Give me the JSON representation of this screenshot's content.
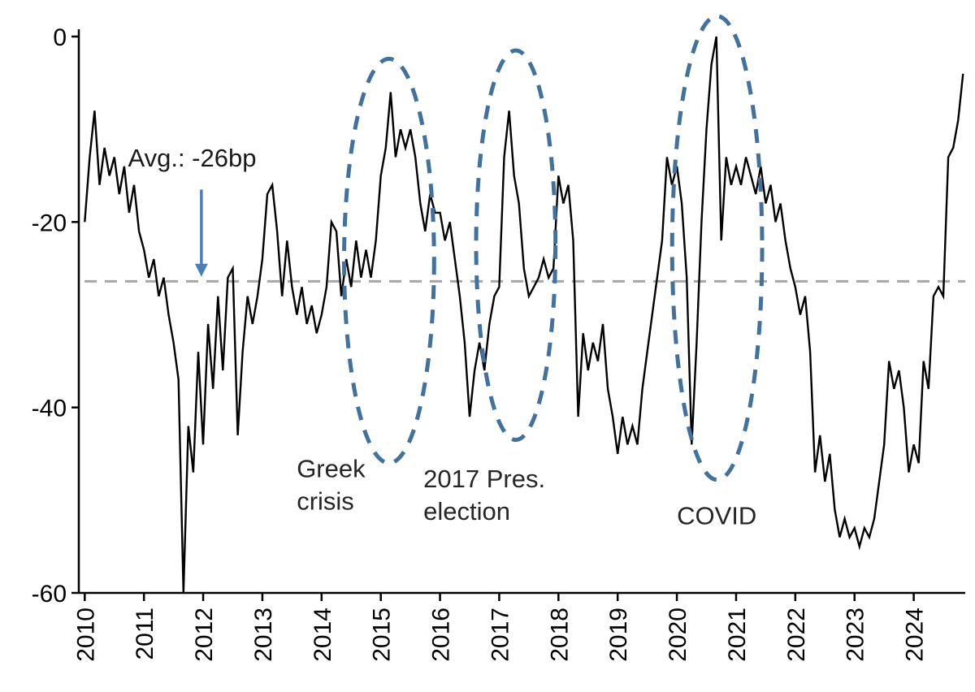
{
  "chart_data": {
    "type": "line",
    "title": "",
    "xlabel": "",
    "ylabel": "",
    "unit": "bp",
    "xlim": [
      2009.9,
      2024.87
    ],
    "ylim": [
      -60,
      0
    ],
    "yticks": [
      0,
      -20,
      -40,
      -60
    ],
    "xticks": [
      2010,
      2011,
      2012,
      2013,
      2014,
      2015,
      2016,
      2017,
      2018,
      2019,
      2020,
      2021,
      2022,
      2023,
      2024
    ],
    "x_start": 2010.0,
    "x_step": 0.083333,
    "grid": false,
    "legend": "none",
    "series": [
      {
        "name": "spread",
        "color": "#000000",
        "values": [
          -20,
          -13,
          -8,
          -16,
          -12,
          -15,
          -13,
          -17,
          -14,
          -19,
          -16,
          -21,
          -23,
          -26,
          -24,
          -28,
          -26,
          -30,
          -33,
          -37,
          -60,
          -42,
          -47,
          -34,
          -44,
          -31,
          -38,
          -28,
          -36,
          -26,
          -25,
          -43,
          -34,
          -28,
          -31,
          -28,
          -24,
          -17,
          -16,
          -21,
          -28,
          -22,
          -27,
          -30,
          -27,
          -31,
          -29,
          -32,
          -30,
          -27,
          -20,
          -21,
          -28,
          -24,
          -27,
          -22,
          -26,
          -23,
          -26,
          -22,
          -15,
          -12,
          -6,
          -13,
          -10,
          -12,
          -10,
          -13,
          -18,
          -21,
          -17,
          -19,
          -19,
          -22,
          -20,
          -24,
          -28,
          -33,
          -41,
          -36,
          -33,
          -36,
          -31,
          -28,
          -27,
          -13,
          -8,
          -15,
          -18,
          -25,
          -28,
          -27,
          -26,
          -24,
          -26,
          -25,
          -15,
          -18,
          -16,
          -22,
          -41,
          -32,
          -36,
          -33,
          -35,
          -31,
          -38,
          -41,
          -45,
          -41,
          -44,
          -42,
          -44,
          -38,
          -34,
          -30,
          -26,
          -22,
          -13,
          -16,
          -14,
          -18,
          -26,
          -44,
          -33,
          -20,
          -10,
          -3,
          0,
          -22,
          -13,
          -16,
          -14,
          -16,
          -13,
          -15,
          -17,
          -14,
          -18,
          -16,
          -20,
          -18,
          -22,
          -25,
          -27,
          -30,
          -28,
          -34,
          -47,
          -43,
          -48,
          -45,
          -51,
          -54,
          -52,
          -54,
          -53,
          -55,
          -53,
          -54,
          -52,
          -48,
          -44,
          -35,
          -38,
          -36,
          -40,
          -47,
          -44,
          -46,
          -35,
          -38,
          -28,
          -27,
          -28,
          -13,
          -12,
          -9,
          -4
        ]
      }
    ],
    "average_line": {
      "value": -26.4,
      "color": "#a6a6a6"
    },
    "annotations": {
      "avg": {
        "text": "Avg.: -26bp",
        "text_x": 2010.73,
        "text_y": -14,
        "arrow_x": 2011.97,
        "arrow_y_from": -16.5,
        "arrow_y_to": -25.9,
        "arrow_color": "#4a7ebb"
      },
      "ellipse_color": "#41719c",
      "ellipses": [
        {
          "name": "greek-crisis-ellipse",
          "cx": 2015.14,
          "cy": -24.2,
          "rx": 0.76,
          "ry": 21.8
        },
        {
          "name": "election-2017-ellipse",
          "cx": 2017.28,
          "cy": -22.5,
          "rx": 0.67,
          "ry": 21.0
        },
        {
          "name": "covid-ellipse",
          "cx": 2020.68,
          "cy": -22.8,
          "rx": 0.76,
          "ry": 25.0
        }
      ],
      "labels": [
        {
          "name": "greek-crisis-label",
          "lines": [
            "Greek",
            "crisis"
          ],
          "x": 2013.58,
          "y": -47.5
        },
        {
          "name": "election-2017-label",
          "lines": [
            "2017 Pres.",
            "election"
          ],
          "x": 2015.72,
          "y": -48.6
        },
        {
          "name": "covid-label",
          "lines": [
            "COVID"
          ],
          "x": 2020.0,
          "y": -52.6
        }
      ]
    }
  }
}
